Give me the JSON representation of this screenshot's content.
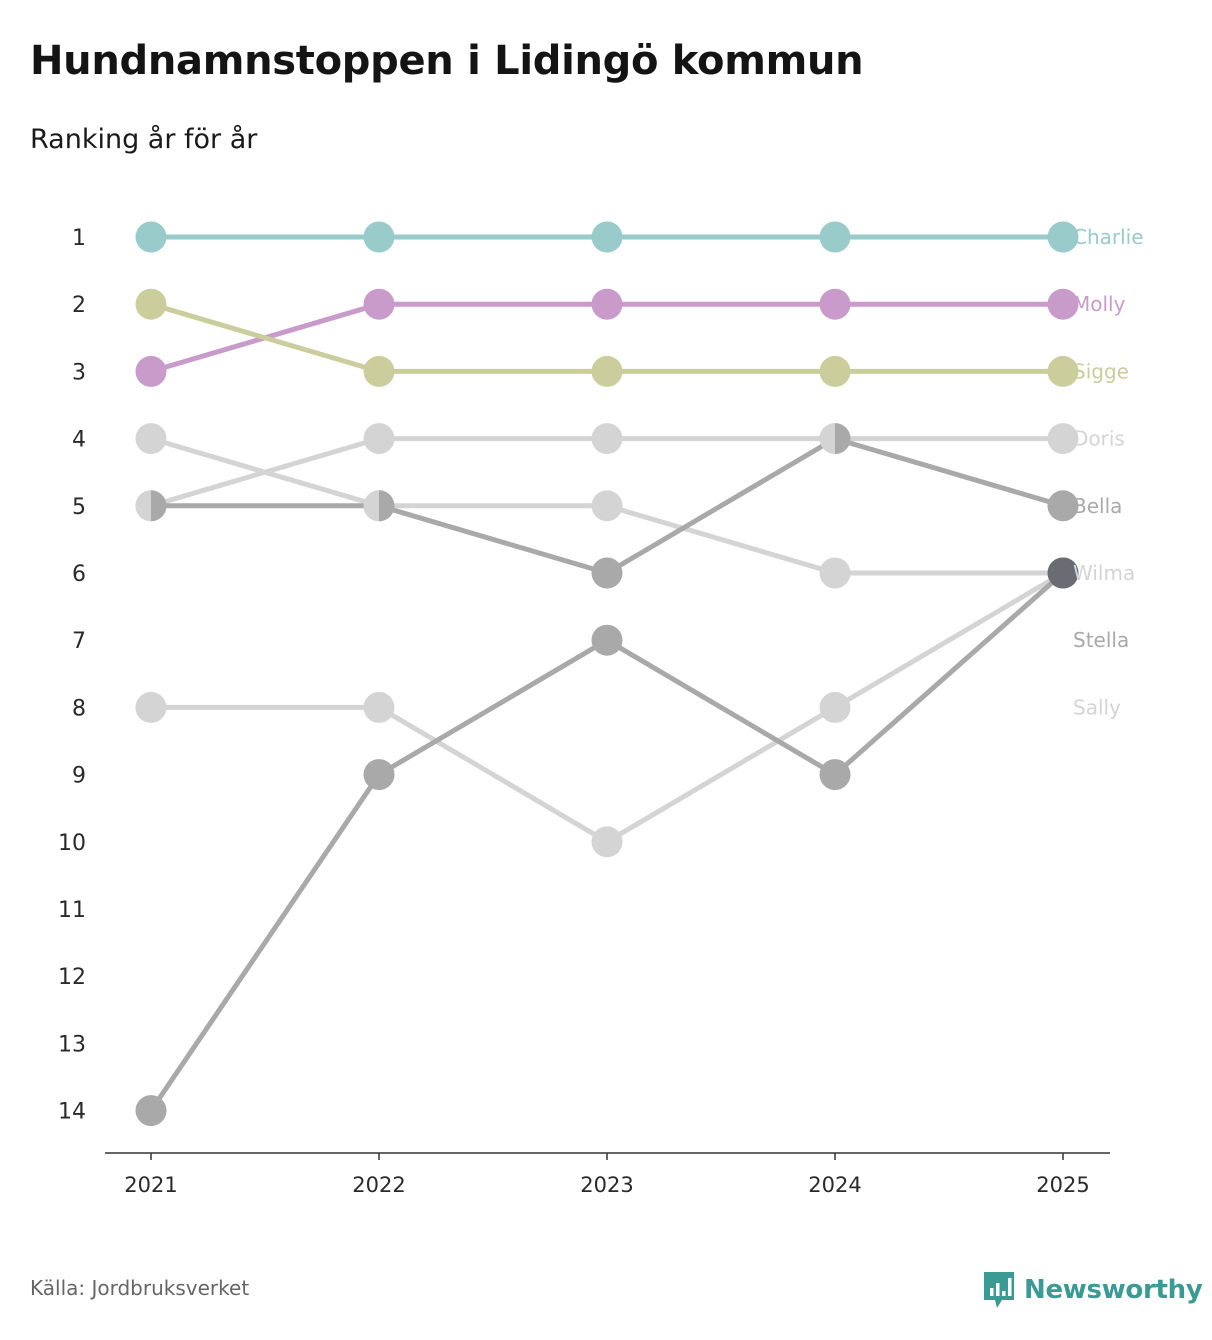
{
  "title": "Hundnamnstoppen i Lidingö kommun",
  "subtitle": "Ranking år för år",
  "source": "Källa: Jordbruksverket",
  "brand": {
    "name": "Newsworthy",
    "color": "#3a9a94",
    "icon": "newsworthy-logo-icon"
  },
  "chart_data": {
    "type": "line",
    "subtype": "bump",
    "title": "Hundnamnstoppen i Lidingö kommun",
    "subtitle": "Ranking år för år",
    "xlabel": "",
    "ylabel": "",
    "y_inverted": true,
    "ylim": [
      1,
      14
    ],
    "yticks": [
      "1",
      "2",
      "3",
      "4",
      "5",
      "6",
      "7",
      "8",
      "9",
      "10",
      "11",
      "12",
      "13",
      "14"
    ],
    "categories": [
      "2021",
      "2022",
      "2023",
      "2024",
      "2025"
    ],
    "grid": false,
    "legend": "end-labels-right",
    "series": [
      {
        "name": "Charlie",
        "color": "#98cbca",
        "values": [
          1,
          1,
          1,
          1,
          1
        ]
      },
      {
        "name": "Molly",
        "color": "#c99bcb",
        "values": [
          3,
          2,
          2,
          2,
          2
        ]
      },
      {
        "name": "Sigge",
        "color": "#cccd9d",
        "values": [
          2,
          3,
          3,
          3,
          3
        ]
      },
      {
        "name": "Doris",
        "color": "#d4d4d4",
        "values": [
          5,
          4,
          4,
          4,
          4
        ]
      },
      {
        "name": "Bella",
        "color": "#a9a9a9",
        "values": [
          5,
          5,
          6,
          4,
          5
        ]
      },
      {
        "name": "Wilma",
        "color": "#d4d4d4",
        "values": [
          4,
          5,
          5,
          6,
          6
        ]
      },
      {
        "name": "Stella",
        "color": "#a9a9a9",
        "values": [
          14,
          9,
          7,
          9,
          6
        ]
      },
      {
        "name": "Sally",
        "color": "#d4d4d4",
        "values": [
          8,
          8,
          10,
          8,
          6
        ]
      }
    ],
    "highlight_point": {
      "category": "2025",
      "value": 6,
      "color": "#6b6b73"
    }
  }
}
